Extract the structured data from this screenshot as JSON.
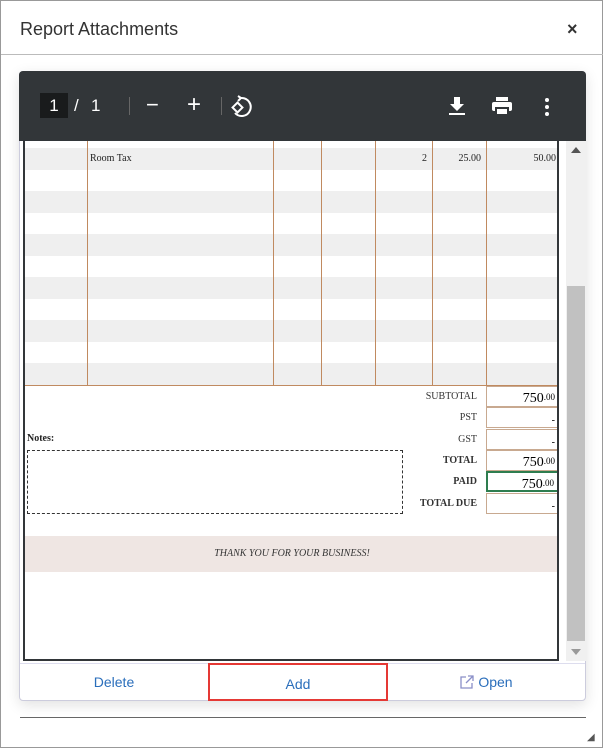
{
  "dialog": {
    "title": "Report Attachments",
    "close": "×"
  },
  "toolbar": {
    "page_current": "1",
    "page_sep": "/",
    "page_total": "1",
    "zoom_out": "−",
    "zoom_in": "+",
    "icons": [
      "rotate-icon",
      "download-icon",
      "print-icon",
      "more-vert-icon"
    ]
  },
  "invoice": {
    "line_items": [
      {
        "description": "Room Tax",
        "qty": "2",
        "rate": "25.00",
        "amount": "50.00"
      }
    ],
    "totals": [
      {
        "label": "SUBTOTAL",
        "value": "750",
        "cents": ".00",
        "bold": false
      },
      {
        "label": "PST",
        "value": "-",
        "cents": "",
        "bold": false
      },
      {
        "label": "GST",
        "value": "-",
        "cents": "",
        "bold": false
      },
      {
        "label": "TOTAL",
        "value": "750",
        "cents": ".00",
        "bold": true
      },
      {
        "label": "PAID",
        "value": "750",
        "cents": ".00",
        "bold": true
      },
      {
        "label": "TOTAL DUE",
        "value": "-",
        "cents": "",
        "bold": true
      }
    ],
    "notes_label": "Notes:",
    "thank_you": "THANK YOU FOR YOUR BUSINESS!"
  },
  "actions": {
    "delete": "Delete",
    "add": "Add",
    "open": "Open"
  },
  "colors": {
    "toolbar": "#323639",
    "link": "#2a6ebb",
    "highlight": "#e53935",
    "grid": "#c08a60"
  }
}
